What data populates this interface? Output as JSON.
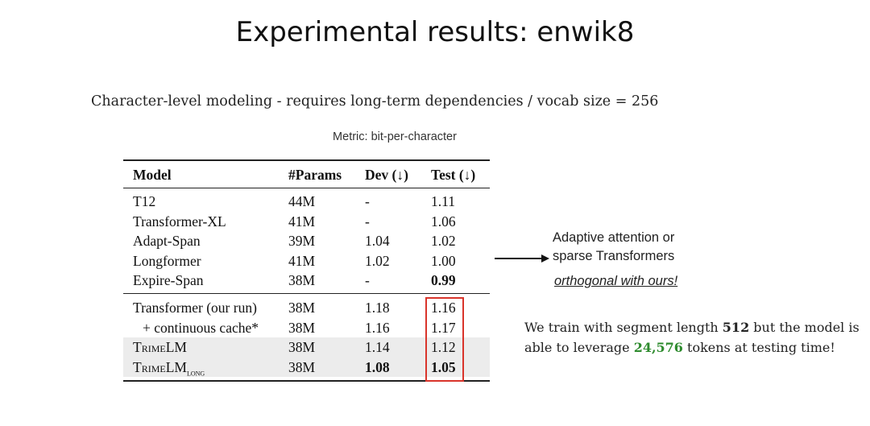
{
  "title": "Experimental results:  enwik8",
  "subtitle": "Character-level modeling - requires long-term dependencies / vocab size = 256",
  "metric": "Metric: bit-per-character",
  "table": {
    "headers": [
      "Model",
      "#Params",
      "Dev (↓)",
      "Test (↓)"
    ],
    "group1": [
      {
        "model": "T12",
        "params": "44M",
        "dev": "-",
        "test": "1.11"
      },
      {
        "model": "Transformer-XL",
        "params": "41M",
        "dev": "-",
        "test": "1.06"
      },
      {
        "model": "Adapt-Span",
        "params": "39M",
        "dev": "1.04",
        "test": "1.02"
      },
      {
        "model": "Longformer",
        "params": "41M",
        "dev": "1.02",
        "test": "1.00"
      },
      {
        "model": "Expire-Span",
        "params": "38M",
        "dev": "-",
        "test": "0.99"
      }
    ],
    "group2": [
      {
        "model": "Transformer (our run)",
        "params": "38M",
        "dev": "1.18",
        "test": "1.16"
      },
      {
        "model": "+ continuous cache*",
        "params": "38M",
        "dev": "1.16",
        "test": "1.17"
      },
      {
        "model": "TrimeLM",
        "params": "38M",
        "dev": "1.14",
        "test": "1.12"
      },
      {
        "model": "TrimeLM",
        "model_sub": "long",
        "params": "38M",
        "dev": "1.08",
        "test": "1.05"
      }
    ]
  },
  "annotation": {
    "line1": "Adaptive attention or",
    "line2": "sparse Transformers",
    "line3": "orthogonal with ours!"
  },
  "note": {
    "part1": "We train with segment length ",
    "seg_len": "512",
    "part2": " but the model is able to leverage ",
    "tokens": "24,576",
    "part3": " tokens at testing time!"
  },
  "colors": {
    "highlight_box": "#d9342b",
    "tokens": "#2e8b2e",
    "shade": "#ececec"
  }
}
